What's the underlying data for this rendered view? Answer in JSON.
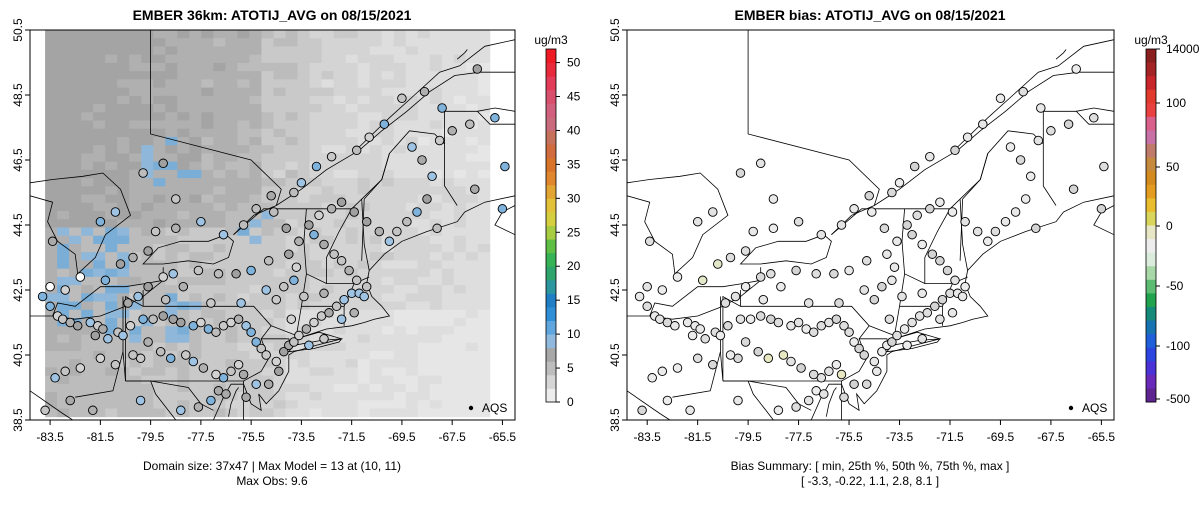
{
  "chart_data": [
    {
      "type": "heatmap",
      "title": "EMBER 36km: ATOTIJ_AVG on 08/15/2021",
      "xlabel": "",
      "ylabel": "",
      "xlim": [
        -84.3,
        -65.0
      ],
      "ylim": [
        38.5,
        50.5
      ],
      "x_ticks": [
        "-83.5",
        "-81.5",
        "-79.5",
        "-77.5",
        "-75.5",
        "-73.5",
        "-71.5",
        "-69.5",
        "-67.5",
        "-65.5"
      ],
      "y_ticks": [
        "38.5",
        "40.5",
        "42.5",
        "44.5",
        "46.5",
        "48.5",
        "50.5"
      ],
      "colorbar": {
        "unit": "ug/m3",
        "ticks": [
          "0",
          "5",
          "10",
          "15",
          "20",
          "25",
          "30",
          "35",
          "40",
          "45",
          "50"
        ],
        "range": [
          0,
          52
        ]
      },
      "legend": {
        "label": "AQS",
        "position": "bottom-right"
      },
      "footnote_lines": [
        "Domain size: 37x47 | Max Model = 13 at (10, 11)",
        "Max Obs: 9.6"
      ]
    },
    {
      "type": "heatmap",
      "title": "EMBER bias: ATOTIJ_AVG on 08/15/2021",
      "xlabel": "",
      "ylabel": "",
      "xlim": [
        -84.3,
        -65.0
      ],
      "ylim": [
        38.5,
        50.5
      ],
      "x_ticks": [
        "-83.5",
        "-81.5",
        "-79.5",
        "-77.5",
        "-75.5",
        "-73.5",
        "-71.5",
        "-69.5",
        "-67.5",
        "-65.5"
      ],
      "y_ticks": [
        "38.5",
        "40.5",
        "42.5",
        "44.5",
        "46.5",
        "48.5",
        "50.5"
      ],
      "colorbar": {
        "unit": "ug/m3",
        "ticks": [
          "14000",
          "100",
          "50",
          "0",
          "-50",
          "-100",
          "-500"
        ]
      },
      "legend": {
        "label": "AQS",
        "position": "bottom-right"
      },
      "bias_summary": {
        "min": -3.3,
        "p25": -0.22,
        "p50": 1.1,
        "p75": 2.8,
        "max": 8.1
      },
      "footnote_lines": [
        "Bias Summary: [ min, 25th %, 50th %, 75th %, max ]",
        "[ -3.3,   -0.22,   1.1,   2.8,   8.1 ]"
      ]
    }
  ]
}
